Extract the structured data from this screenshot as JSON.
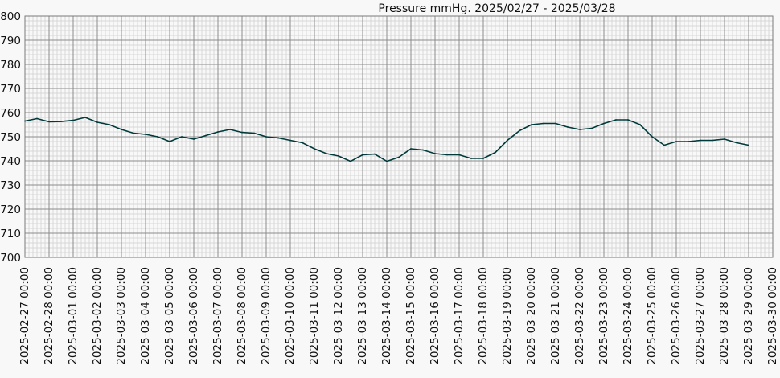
{
  "colors": {
    "background": "#f8f8f8",
    "plot_background": "#f8f8f8",
    "major_grid": "#8c8c8c",
    "minor_grid": "#d7d7d7",
    "series_line": "#003a3a",
    "axis_text": "#111111",
    "frame": "#7a7a7a"
  },
  "chart_data": {
    "type": "line",
    "title": "Pressure mmHg. 2025/02/27 - 2025/03/28",
    "xlabel": "",
    "ylabel": "",
    "ylim": [
      700,
      800
    ],
    "xlim": [
      "2025-02-27 00:00",
      "2025-03-30 00:00"
    ],
    "grid": true,
    "legend": "none",
    "y_ticks": [
      "700",
      "710",
      "720",
      "730",
      "740",
      "750",
      "760",
      "770",
      "780",
      "790",
      "800"
    ],
    "x_ticks": [
      "2025-02-27 00:00",
      "2025-02-28 00:00",
      "2025-03-01 00:00",
      "2025-03-02 00:00",
      "2025-03-03 00:00",
      "2025-03-04 00:00",
      "2025-03-05 00:00",
      "2025-03-06 00:00",
      "2025-03-07 00:00",
      "2025-03-08 00:00",
      "2025-03-09 00:00",
      "2025-03-10 00:00",
      "2025-03-11 00:00",
      "2025-03-12 00:00",
      "2025-03-13 00:00",
      "2025-03-14 00:00",
      "2025-03-15 00:00",
      "2025-03-16 00:00",
      "2025-03-17 00:00",
      "2025-03-18 00:00",
      "2025-03-19 00:00",
      "2025-03-20 00:00",
      "2025-03-21 00:00",
      "2025-03-22 00:00",
      "2025-03-23 00:00",
      "2025-03-24 00:00",
      "2025-03-25 00:00",
      "2025-03-26 00:00",
      "2025-03-27 00:00",
      "2025-03-28 00:00",
      "2025-03-29 00:00",
      "2025-03-30 00:00"
    ],
    "series": [
      {
        "x": [
          "2025-02-27 00:00",
          "2025-02-27 12:00",
          "2025-02-28 00:00",
          "2025-02-28 12:00",
          "2025-03-01 00:00",
          "2025-03-01 12:00",
          "2025-03-02 00:00",
          "2025-03-02 12:00",
          "2025-03-03 00:00",
          "2025-03-03 12:00",
          "2025-03-04 00:00",
          "2025-03-04 12:00",
          "2025-03-05 00:00",
          "2025-03-05 12:00",
          "2025-03-06 00:00",
          "2025-03-06 12:00",
          "2025-03-07 00:00",
          "2025-03-07 12:00",
          "2025-03-08 00:00",
          "2025-03-08 12:00",
          "2025-03-09 00:00",
          "2025-03-09 12:00",
          "2025-03-10 00:00",
          "2025-03-10 12:00",
          "2025-03-11 00:00",
          "2025-03-11 12:00",
          "2025-03-12 00:00",
          "2025-03-12 12:00",
          "2025-03-13 00:00",
          "2025-03-13 12:00",
          "2025-03-14 00:00",
          "2025-03-14 12:00",
          "2025-03-15 00:00",
          "2025-03-15 12:00",
          "2025-03-16 00:00",
          "2025-03-16 12:00",
          "2025-03-17 00:00",
          "2025-03-17 12:00",
          "2025-03-18 00:00",
          "2025-03-18 12:00",
          "2025-03-19 00:00",
          "2025-03-19 12:00",
          "2025-03-20 00:00",
          "2025-03-20 12:00",
          "2025-03-21 00:00",
          "2025-03-21 12:00",
          "2025-03-22 00:00",
          "2025-03-22 12:00",
          "2025-03-23 00:00",
          "2025-03-23 12:00",
          "2025-03-24 00:00",
          "2025-03-24 12:00",
          "2025-03-25 00:00",
          "2025-03-25 12:00",
          "2025-03-26 00:00",
          "2025-03-26 12:00",
          "2025-03-27 00:00",
          "2025-03-27 12:00",
          "2025-03-28 00:00",
          "2025-03-28 12:00",
          "2025-03-29 00:00"
        ],
        "values": [
          756.5,
          757.5,
          756.2,
          756.3,
          756.8,
          758.0,
          756.0,
          755.0,
          753.0,
          751.5,
          751.0,
          750.0,
          748.0,
          750.0,
          749.0,
          750.5,
          752.0,
          753.0,
          751.8,
          751.5,
          750.0,
          749.5,
          748.5,
          747.5,
          745.0,
          743.0,
          742.0,
          739.8,
          742.5,
          742.8,
          739.8,
          741.5,
          745.0,
          744.5,
          743.0,
          742.5,
          742.5,
          741.0,
          741.0,
          743.5,
          748.5,
          752.5,
          755.0,
          755.5,
          755.5,
          754.0,
          753.0,
          753.5,
          755.5,
          757.0,
          757.0,
          755.0,
          750.0,
          746.5,
          748.0,
          748.0,
          748.5,
          748.5,
          749.0,
          747.5,
          746.5
        ]
      }
    ]
  }
}
